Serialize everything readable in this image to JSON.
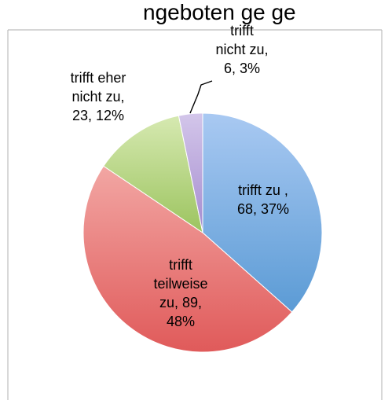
{
  "page": {
    "top_cropped_text": "ngeboten ge ge"
  },
  "chart_data": {
    "type": "pie",
    "title": "",
    "slices": [
      {
        "name": "trifft zu ",
        "value": 68,
        "percent": "37%",
        "label_lines": [
          "trifft zu ,",
          "68, 37%"
        ],
        "color": "#5b9bd5",
        "color_light": "#a9c9f2"
      },
      {
        "name": "trifft teilweise zu",
        "value": 89,
        "percent": "48%",
        "label_lines": [
          "trifft",
          "teilweise",
          "zu, 89,",
          "48%"
        ],
        "color": "#e05a5a",
        "color_light": "#f2a6a3"
      },
      {
        "name": "trifft eher nicht zu",
        "value": 23,
        "percent": "12%",
        "label_lines": [
          "trifft eher",
          "nicht zu,",
          "23, 12%"
        ],
        "color": "#9cc45f",
        "color_light": "#d6e9b1"
      },
      {
        "name": "trifft nicht zu",
        "value": 6,
        "percent": "3%",
        "label_lines": [
          "trifft",
          "nicht zu,",
          "6, 3%"
        ],
        "color": "#a58ccf",
        "color_light": "#d3c6ea"
      }
    ],
    "legend": "none"
  }
}
